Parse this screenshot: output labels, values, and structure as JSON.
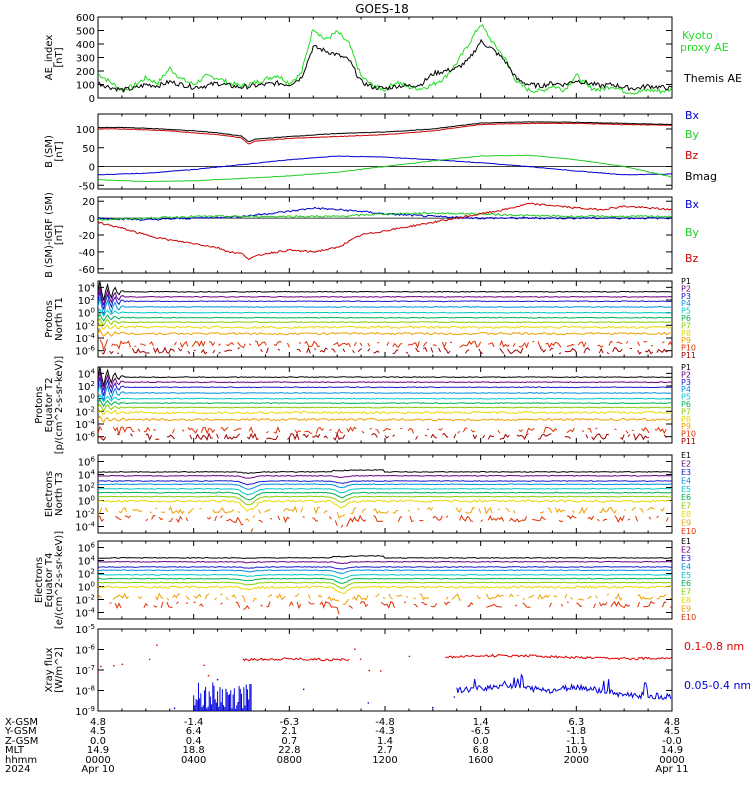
{
  "title": "GOES-18",
  "colors": {
    "kyoto": "#22dd22",
    "themis": "#000000",
    "bx": "#0000cc",
    "by": "#22cc22",
    "bz": "#cc0000",
    "bmag": "#000000",
    "xray_long": "#dd0000",
    "xray_short": "#0000dd",
    "channels": [
      "#000000",
      "#6a0080",
      "#1a1acc",
      "#0090e0",
      "#00c8c8",
      "#00b050",
      "#88cc00",
      "#e8d800",
      "#f0a000",
      "#e03000",
      "#a00000"
    ]
  },
  "chart_data": [
    {
      "type": "line",
      "id": "ae",
      "ylabel": "AE_index [nT]",
      "ylim": [
        0,
        600
      ],
      "yticks": [
        "600",
        "500",
        "400",
        "300",
        "200",
        "100",
        "0"
      ],
      "series": [
        {
          "name": "Kyoto proxy AE",
          "x": [
            0,
            0.5,
            1,
            1.5,
            2,
            2.5,
            3,
            3.5,
            4,
            4.5,
            5,
            5.5,
            6,
            6.5,
            7,
            7.5,
            8,
            8.5,
            9,
            9.5,
            10,
            10.5,
            11,
            11.5,
            12,
            12.5,
            13,
            13.5,
            14,
            14.5,
            15,
            15.5,
            16,
            16.5,
            17,
            17.5,
            18,
            18.5,
            19,
            19.5,
            20,
            20.5,
            21,
            21.5,
            22,
            22.5,
            23,
            23.5,
            24
          ],
          "y": [
            180,
            120,
            60,
            90,
            150,
            110,
            220,
            140,
            100,
            160,
            150,
            110,
            90,
            110,
            140,
            170,
            110,
            180,
            520,
            430,
            490,
            400,
            160,
            90,
            60,
            120,
            80,
            70,
            100,
            150,
            260,
            400,
            550,
            410,
            300,
            120,
            60,
            50,
            90,
            60,
            170,
            80,
            60,
            90,
            50,
            40,
            60,
            50,
            60
          ]
        },
        {
          "name": "Themis AE",
          "x": [
            0,
            0.5,
            1,
            1.5,
            2,
            2.5,
            3,
            3.5,
            4,
            4.5,
            5,
            5.5,
            6,
            6.5,
            7,
            7.5,
            8,
            8.5,
            9,
            9.5,
            10,
            10.5,
            11,
            11.5,
            12,
            12.5,
            13,
            13.5,
            14,
            14.5,
            15,
            15.5,
            16,
            16.5,
            17,
            17.5,
            18,
            18.5,
            19,
            19.5,
            20,
            20.5,
            21,
            21.5,
            22,
            22.5,
            23,
            23.5,
            24
          ],
          "y": [
            110,
            80,
            60,
            70,
            100,
            90,
            120,
            100,
            80,
            90,
            110,
            90,
            80,
            90,
            100,
            110,
            100,
            150,
            380,
            350,
            320,
            280,
            120,
            80,
            70,
            90,
            90,
            100,
            180,
            200,
            220,
            280,
            420,
            360,
            280,
            140,
            100,
            90,
            110,
            100,
            130,
            110,
            90,
            100,
            80,
            70,
            90,
            80,
            70
          ]
        }
      ],
      "legend": [
        "Kyoto",
        "proxy AE",
        "Themis AE"
      ]
    },
    {
      "type": "line",
      "id": "bsm",
      "ylabel": "B (SM) [nT]",
      "ylim": [
        -60,
        140
      ],
      "yticks": [
        "100",
        "50",
        "0",
        "-50"
      ],
      "series": [
        {
          "name": "Bx",
          "x": [
            0,
            2,
            4,
            6,
            8,
            10,
            12,
            14,
            16,
            18,
            20,
            22,
            24
          ],
          "y": [
            -22,
            -18,
            -8,
            5,
            18,
            28,
            25,
            18,
            10,
            0,
            -12,
            -22,
            -20
          ]
        },
        {
          "name": "By",
          "x": [
            0,
            2,
            4,
            6,
            8,
            10,
            12,
            14,
            16,
            18,
            20,
            22,
            24
          ],
          "y": [
            -35,
            -40,
            -38,
            -32,
            -25,
            -15,
            0,
            15,
            28,
            30,
            18,
            0,
            -28
          ]
        },
        {
          "name": "Bz",
          "x": [
            0,
            1,
            2,
            3,
            4,
            5,
            6,
            6.3,
            6.6,
            8,
            10,
            12,
            14,
            16,
            18,
            20,
            22,
            24
          ],
          "y": [
            100,
            100,
            98,
            95,
            90,
            85,
            76,
            60,
            68,
            75,
            80,
            85,
            95,
            112,
            115,
            115,
            112,
            110
          ]
        },
        {
          "name": "Bmag",
          "x": [
            0,
            1,
            2,
            3,
            4,
            5,
            6,
            6.3,
            6.6,
            8,
            10,
            12,
            14,
            16,
            18,
            20,
            22,
            24
          ],
          "y": [
            104,
            104,
            102,
            99,
            95,
            90,
            81,
            66,
            73,
            80,
            88,
            92,
            100,
            116,
            119,
            118,
            115,
            112
          ]
        }
      ],
      "legend": [
        "Bx",
        "By",
        "Bz",
        "Bmag"
      ]
    },
    {
      "type": "line",
      "id": "bigrf",
      "ylabel": "B (SM)-IGRF (SM) [nT]",
      "ylim": [
        -65,
        25
      ],
      "yticks": [
        "20",
        "0",
        "-20",
        "-40",
        "-60"
      ],
      "series": [
        {
          "name": "Bx",
          "x": [
            0,
            2,
            4,
            6,
            8,
            9,
            10,
            11,
            12,
            14,
            16,
            18,
            20,
            22,
            24
          ],
          "y": [
            0,
            -2,
            0,
            2,
            8,
            12,
            10,
            8,
            5,
            2,
            0,
            0,
            0,
            0,
            0
          ]
        },
        {
          "name": "By",
          "x": [
            0,
            2,
            4,
            6,
            8,
            10,
            12,
            14,
            16,
            18,
            20,
            22,
            24
          ],
          "y": [
            -2,
            0,
            2,
            2,
            2,
            2,
            5,
            6,
            5,
            3,
            2,
            2,
            2
          ]
        },
        {
          "name": "Bz",
          "x": [
            0,
            1,
            2,
            3,
            4,
            5,
            5.5,
            6,
            6.3,
            7,
            8,
            9,
            10,
            11,
            12,
            13,
            14,
            15,
            16,
            17,
            18,
            19,
            20,
            21,
            22,
            23,
            24
          ],
          "y": [
            -5,
            -12,
            -20,
            -26,
            -30,
            -35,
            -40,
            -42,
            -48,
            -42,
            -38,
            -40,
            -35,
            -20,
            -15,
            -10,
            -5,
            0,
            5,
            10,
            17,
            15,
            12,
            10,
            14,
            12,
            10
          ]
        }
      ],
      "legend": [
        "Bx",
        "By",
        "Bz"
      ]
    },
    {
      "type": "line",
      "id": "pn",
      "ylabel": "Protons North T1",
      "log": true,
      "ylim_exp": [
        -7,
        5
      ],
      "yticks": [
        "10^4",
        "10^2",
        "10^0",
        "10^-2",
        "10^-4",
        "10^-6"
      ],
      "channels": [
        "P1",
        "P2",
        "P3",
        "P4",
        "P5",
        "P6",
        "P7",
        "P8",
        "P9",
        "P10",
        "P11"
      ],
      "levels": [
        3.3,
        2.5,
        1.8,
        0.9,
        0.0,
        -0.8,
        -1.5,
        -2.3,
        -3.3,
        -5.0,
        -6.0
      ]
    },
    {
      "type": "line",
      "id": "pe",
      "ylabel": "Protons Equator T2 [p/(cm^2-s-sr-keV)]",
      "log": true,
      "ylim_exp": [
        -7,
        5
      ],
      "yticks": [
        "10^4",
        "10^2",
        "10^0",
        "10^-2",
        "10^-4",
        "10^-6"
      ],
      "channels": [
        "P1",
        "P2",
        "P3",
        "P4",
        "P5",
        "P6",
        "P7",
        "P8",
        "P9",
        "P10",
        "P11"
      ],
      "levels": [
        3.4,
        2.6,
        1.8,
        0.9,
        0.0,
        -0.7,
        -1.4,
        -2.2,
        -3.3,
        -5.0,
        -6.0
      ]
    },
    {
      "type": "line",
      "id": "en",
      "ylabel": "Electrons North T3",
      "log": true,
      "ylim_exp": [
        -5,
        7
      ],
      "yticks": [
        "10^6",
        "10^4",
        "10^2",
        "10^0",
        "10^-2",
        "10^-4"
      ],
      "channels": [
        "E1",
        "E2",
        "E3",
        "E4",
        "E5",
        "E6",
        "E7",
        "E8",
        "E9",
        "E10"
      ],
      "levels": [
        4.4,
        3.8,
        3.0,
        2.5,
        1.8,
        1.2,
        0.6,
        -0.1,
        -1.5,
        -2.8
      ]
    },
    {
      "type": "line",
      "id": "ee",
      "ylabel": "Electrons Equator T4 [e/(cm^2-s-sr-keV)]",
      "log": true,
      "ylim_exp": [
        -5,
        7
      ],
      "yticks": [
        "10^6",
        "10^4",
        "10^2",
        "10^0",
        "10^-2",
        "10^-4"
      ],
      "channels": [
        "E1",
        "E2",
        "E3",
        "E4",
        "E5",
        "E6",
        "E7",
        "E8",
        "E9",
        "E10"
      ],
      "levels": [
        4.4,
        3.8,
        3.0,
        2.5,
        1.8,
        1.2,
        0.6,
        -0.1,
        -1.6,
        -2.8
      ]
    },
    {
      "type": "line",
      "id": "xray",
      "ylabel": "Xray flux [W/m^2]",
      "log": true,
      "ylim_exp": [
        -9,
        -5
      ],
      "yticks": [
        "10^-5",
        "10^-6",
        "10^-7",
        "10^-8",
        "10^-9"
      ],
      "series": [
        {
          "name": "0.1-0.8 nm",
          "x": [
            6,
            8,
            10,
            14,
            16,
            18,
            20,
            22,
            24
          ],
          "y_exp": [
            -6.5,
            -6.45,
            -6.5,
            -6.4,
            -6.3,
            -6.3,
            -6.4,
            -6.45,
            -6.4
          ]
        },
        {
          "name": "0.05-0.4 nm",
          "x": [
            15,
            16,
            17,
            18,
            19,
            20,
            22,
            24
          ],
          "y_exp": [
            -8.0,
            -7.9,
            -7.7,
            -7.9,
            -8.0,
            -7.8,
            -8.2,
            -8.3
          ]
        }
      ],
      "legend": [
        "0.1-0.8 nm",
        "0.05-0.4 nm"
      ]
    }
  ],
  "ephemeris": {
    "labels": [
      "X-GSM",
      "Y-GSM",
      "Z-GSM",
      "MLT",
      "hhmm",
      "2024"
    ],
    "columns": [
      {
        "x_hours": 0,
        "values": [
          "4.8",
          "4.5",
          "0.0",
          "14.9",
          "0000",
          "Apr 10"
        ]
      },
      {
        "x_hours": 4,
        "values": [
          "-1.4",
          "6.4",
          "0.4",
          "18.8",
          "0400",
          ""
        ]
      },
      {
        "x_hours": 8,
        "values": [
          "-6.3",
          "2.1",
          "0.7",
          "22.8",
          "0800",
          ""
        ]
      },
      {
        "x_hours": 12,
        "values": [
          "-4.8",
          "-4.3",
          "1.4",
          "2.7",
          "1200",
          ""
        ]
      },
      {
        "x_hours": 16,
        "values": [
          "1.4",
          "-6.5",
          "0.0",
          "6.8",
          "1600",
          ""
        ]
      },
      {
        "x_hours": 20,
        "values": [
          "6.3",
          "-1.8",
          "-1.1",
          "10.9",
          "2000",
          ""
        ]
      },
      {
        "x_hours": 24,
        "values": [
          "4.8",
          "4.5",
          "-0.0",
          "14.9",
          "0000",
          "Apr 11"
        ]
      }
    ]
  }
}
